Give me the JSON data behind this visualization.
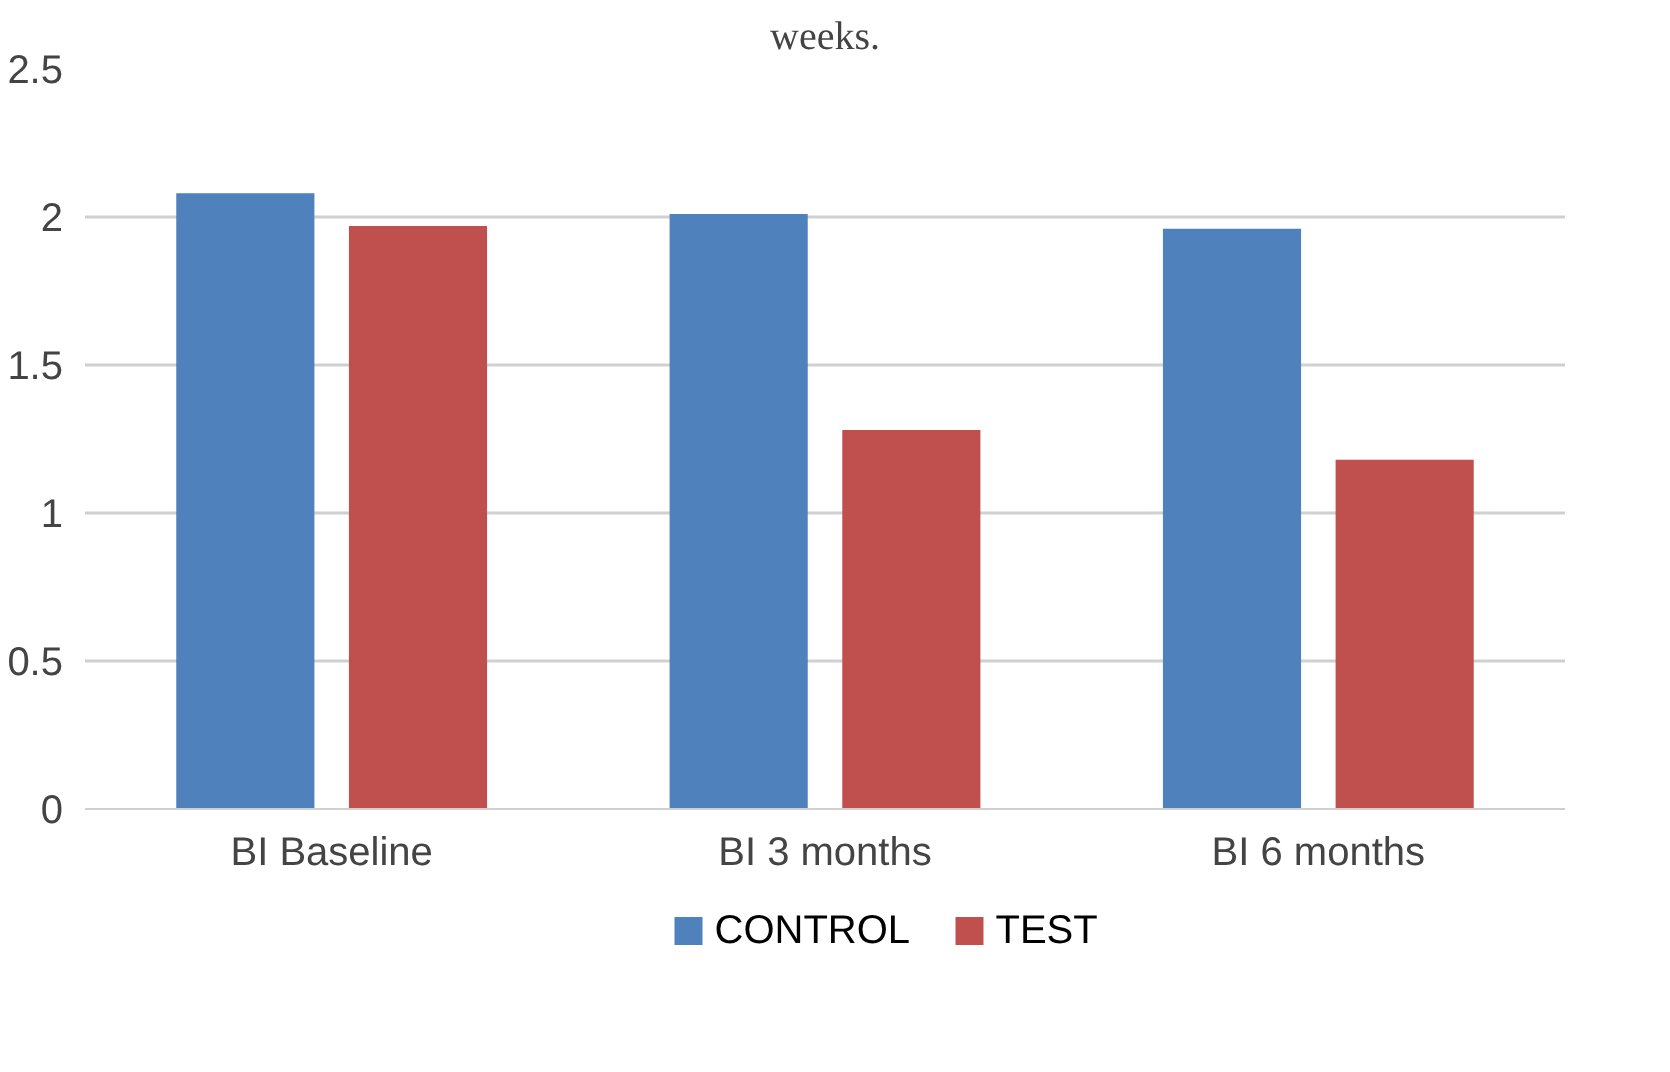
{
  "chart_data": {
    "type": "bar",
    "title": "weeks.",
    "categories": [
      "BI Baseline",
      "BI 3 months",
      "BI 6 months"
    ],
    "series": [
      {
        "name": "CONTROL",
        "color": "#4f81bd",
        "values": [
          2.08,
          2.01,
          1.96
        ]
      },
      {
        "name": "TEST",
        "color": "#c0504d",
        "values": [
          1.97,
          1.28,
          1.18
        ]
      }
    ],
    "ylim": [
      0,
      2.5
    ],
    "yticks": [
      0,
      0.5,
      1,
      1.5,
      2,
      2.5
    ],
    "grid": "y",
    "legend": "bottom"
  }
}
